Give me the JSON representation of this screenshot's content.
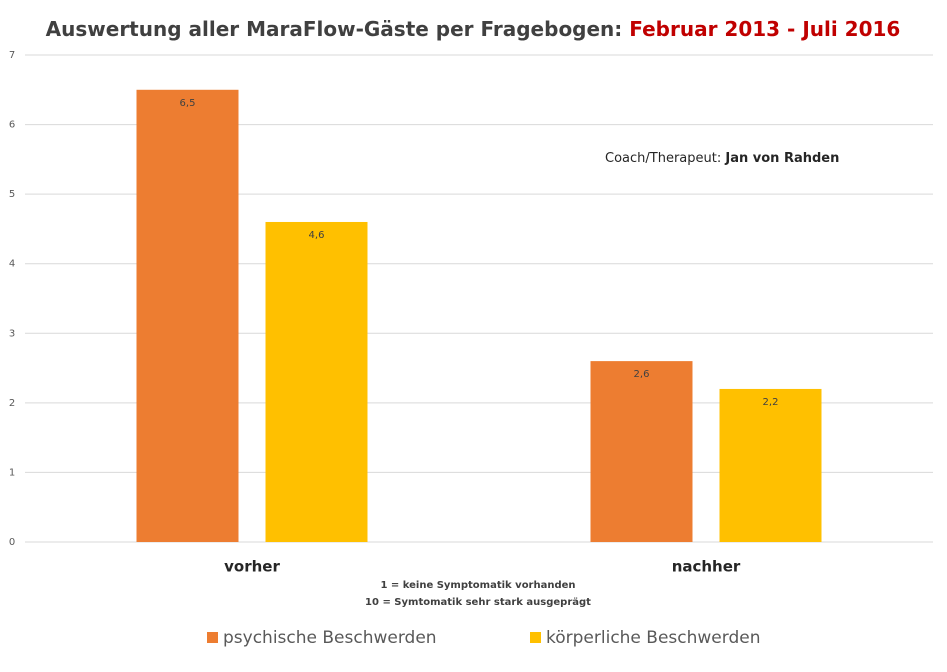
{
  "chart_data": {
    "type": "bar",
    "title": [
      "Auswertung aller MaraFlow-Gäste per Fragebogen:",
      "Februar 2013 - Juli 2016"
    ],
    "annotation": [
      "Coach/Therapeut:",
      "Jan von Rahden"
    ],
    "footnotes": [
      "1 = keine Symptomatik vorhanden",
      "10 = Symtomatik sehr stark ausgeprägt"
    ],
    "categories": [
      "vorher",
      "nachher"
    ],
    "series": [
      {
        "name": "psychische Beschwerden",
        "color": "#ed7d31",
        "values": [
          6.5,
          2.6
        ],
        "value_labels": [
          "6,5",
          "2,6"
        ]
      },
      {
        "name": "körperliche Beschwerden",
        "color": "#ffc000",
        "values": [
          4.6,
          2.2
        ],
        "value_labels": [
          "4,6",
          "2,2"
        ]
      }
    ],
    "ylim": [
      0,
      7
    ],
    "yticks": [
      0,
      1,
      2,
      3,
      4,
      5,
      6,
      7
    ],
    "grid": true,
    "legend": "bottom"
  }
}
